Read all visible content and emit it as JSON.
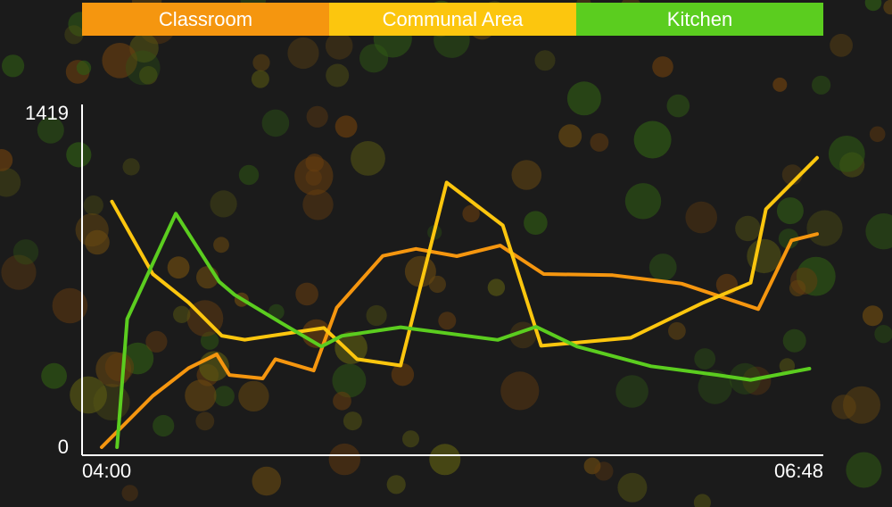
{
  "legend": [
    {
      "label": "Classroom",
      "color": "#f5960f"
    },
    {
      "label": "Communal Area",
      "color": "#fcc60e"
    },
    {
      "label": "Kitchen",
      "color": "#5bcd1f"
    }
  ],
  "chart_data": {
    "type": "line",
    "x_labels": [
      "04:00",
      "06:48"
    ],
    "y_ticks": [
      "0",
      "1419"
    ],
    "ylim": [
      0,
      1419
    ],
    "x_range": [
      0,
      28
    ],
    "series": [
      {
        "name": "Classroom",
        "color": "#f5960f",
        "points": [
          [
            0,
            0
          ],
          [
            2,
            218
          ],
          [
            3.4,
            336
          ],
          [
            4.5,
            395
          ],
          [
            5,
            307
          ],
          [
            6.3,
            292
          ],
          [
            6.8,
            374
          ],
          [
            8.3,
            326
          ],
          [
            9.2,
            593
          ],
          [
            11,
            813
          ],
          [
            12.3,
            843
          ],
          [
            13.9,
            812
          ],
          [
            15.6,
            857
          ],
          [
            17.3,
            736
          ],
          [
            20,
            731
          ],
          [
            22.7,
            695
          ],
          [
            25.7,
            587
          ],
          [
            27,
            879
          ],
          [
            28,
            906
          ]
        ]
      },
      {
        "name": "Communal Area",
        "color": "#fcc60e",
        "points": [
          [
            0.4,
            1044
          ],
          [
            2,
            736
          ],
          [
            3.4,
            615
          ],
          [
            4.7,
            474
          ],
          [
            5.6,
            457
          ],
          [
            8.7,
            507
          ],
          [
            10,
            374
          ],
          [
            11.7,
            347
          ],
          [
            13.5,
            1125
          ],
          [
            15.7,
            943
          ],
          [
            17.2,
            431
          ],
          [
            20.7,
            465
          ],
          [
            23.5,
            612
          ],
          [
            25.4,
            699
          ],
          [
            26,
            1012
          ],
          [
            28,
            1230
          ]
        ]
      },
      {
        "name": "Kitchen",
        "color": "#5bcd1f",
        "points": [
          [
            0.6,
            0
          ],
          [
            1,
            545
          ],
          [
            2.9,
            993
          ],
          [
            4.6,
            703
          ],
          [
            5.2,
            648
          ],
          [
            7,
            530
          ],
          [
            8.6,
            428
          ],
          [
            9.4,
            473
          ],
          [
            11.7,
            510
          ],
          [
            15.5,
            456
          ],
          [
            17,
            512
          ],
          [
            18.6,
            428
          ],
          [
            21.5,
            344
          ],
          [
            24.1,
            307
          ],
          [
            25.4,
            286
          ],
          [
            27.7,
            334
          ]
        ]
      }
    ]
  }
}
